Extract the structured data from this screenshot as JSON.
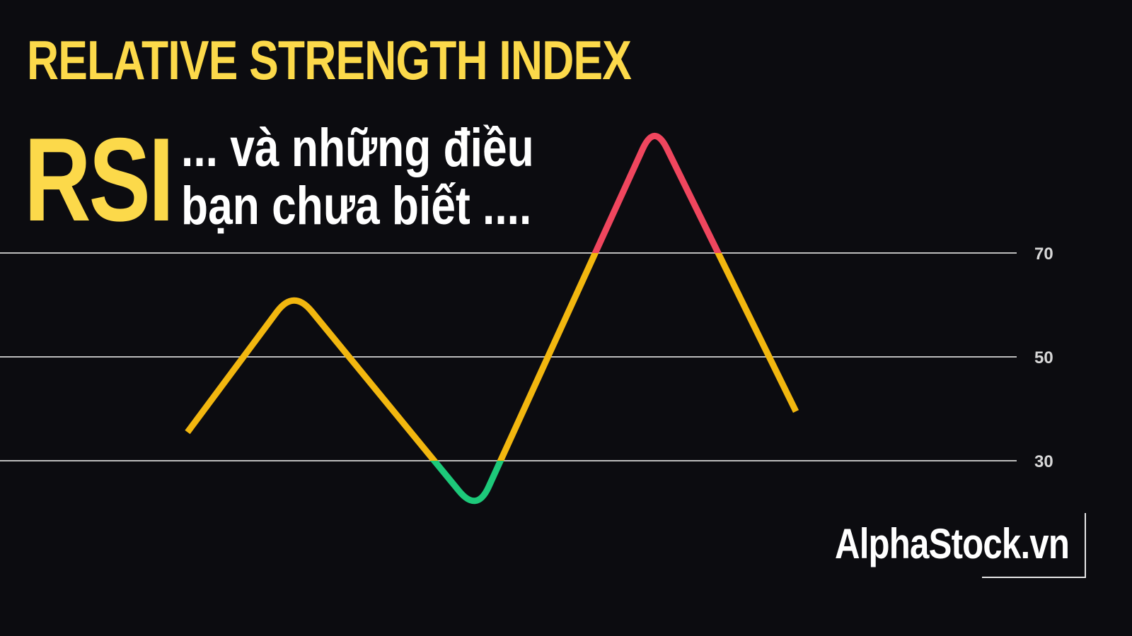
{
  "header": {
    "title": "RELATIVE STRENGTH INDEX",
    "acronym": "RSI",
    "subtitle_line1": "... và những điều",
    "subtitle_line2": "bạn chưa biết ...."
  },
  "brand": {
    "text": "AlphaStock.vn"
  },
  "colors": {
    "background": "#0c0c10",
    "title": "#fcd94a",
    "text": "#ffffff",
    "neutral_line": "#f2b70f",
    "overbought_line": "#f0465e",
    "oversold_line": "#1dc97a",
    "reference_line": "#bdbdbd"
  },
  "chart_data": {
    "type": "line",
    "title": "",
    "xlabel": "",
    "ylabel": "",
    "ylim": [
      15,
      95
    ],
    "grid": false,
    "legend": "none",
    "reference_levels": [
      70,
      50,
      30
    ],
    "tick_labels": [
      "70",
      "50",
      "30"
    ],
    "series": [
      {
        "points": [
          {
            "x": 0,
            "y": 35.5
          },
          {
            "x": 1,
            "y": 63
          },
          {
            "x": 2,
            "y": 20
          },
          {
            "x": 3,
            "y": 95
          },
          {
            "x": 4,
            "y": 39.5
          }
        ]
      }
    ]
  }
}
